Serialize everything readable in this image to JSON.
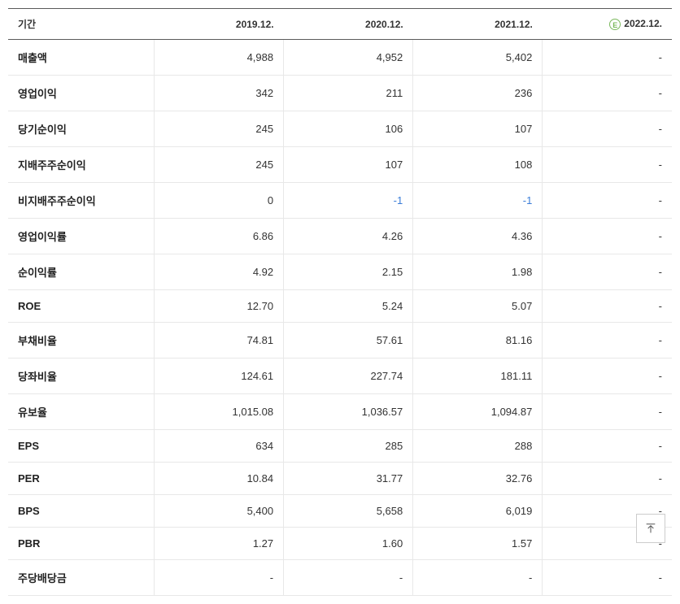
{
  "table": {
    "label_header": "기간",
    "columns": [
      "2019.12.",
      "2020.12.",
      "2021.12.",
      "2022.12."
    ],
    "estimate_col_index": 3,
    "estimate_badge": "E",
    "col_widths": [
      "22%",
      "19.5%",
      "19.5%",
      "19.5%",
      "19.5%"
    ],
    "rows": [
      {
        "label": "매출액",
        "values": [
          "4,988",
          "4,952",
          "5,402",
          "-"
        ],
        "neg": [
          false,
          false,
          false,
          false
        ]
      },
      {
        "label": "영업이익",
        "values": [
          "342",
          "211",
          "236",
          "-"
        ],
        "neg": [
          false,
          false,
          false,
          false
        ]
      },
      {
        "label": "당기순이익",
        "values": [
          "245",
          "106",
          "107",
          "-"
        ],
        "neg": [
          false,
          false,
          false,
          false
        ]
      },
      {
        "label": "지배주주순이익",
        "values": [
          "245",
          "107",
          "108",
          "-"
        ],
        "neg": [
          false,
          false,
          false,
          false
        ]
      },
      {
        "label": "비지배주주순이익",
        "values": [
          "0",
          "-1",
          "-1",
          "-"
        ],
        "neg": [
          false,
          true,
          true,
          false
        ]
      },
      {
        "label": "영업이익률",
        "values": [
          "6.86",
          "4.26",
          "4.36",
          "-"
        ],
        "neg": [
          false,
          false,
          false,
          false
        ]
      },
      {
        "label": "순이익률",
        "values": [
          "4.92",
          "2.15",
          "1.98",
          "-"
        ],
        "neg": [
          false,
          false,
          false,
          false
        ]
      },
      {
        "label": "ROE",
        "values": [
          "12.70",
          "5.24",
          "5.07",
          "-"
        ],
        "neg": [
          false,
          false,
          false,
          false
        ]
      },
      {
        "label": "부채비율",
        "values": [
          "74.81",
          "57.61",
          "81.16",
          "-"
        ],
        "neg": [
          false,
          false,
          false,
          false
        ]
      },
      {
        "label": "당좌비율",
        "values": [
          "124.61",
          "227.74",
          "181.11",
          "-"
        ],
        "neg": [
          false,
          false,
          false,
          false
        ]
      },
      {
        "label": "유보율",
        "values": [
          "1,015.08",
          "1,036.57",
          "1,094.87",
          "-"
        ],
        "neg": [
          false,
          false,
          false,
          false
        ]
      },
      {
        "label": "EPS",
        "values": [
          "634",
          "285",
          "288",
          "-"
        ],
        "neg": [
          false,
          false,
          false,
          false
        ]
      },
      {
        "label": "PER",
        "values": [
          "10.84",
          "31.77",
          "32.76",
          "-"
        ],
        "neg": [
          false,
          false,
          false,
          false
        ]
      },
      {
        "label": "BPS",
        "values": [
          "5,400",
          "5,658",
          "6,019",
          "-"
        ],
        "neg": [
          false,
          false,
          false,
          false
        ]
      },
      {
        "label": "PBR",
        "values": [
          "1.27",
          "1.60",
          "1.57",
          "-"
        ],
        "neg": [
          false,
          false,
          false,
          false
        ]
      },
      {
        "label": "주당배당금",
        "values": [
          "-",
          "-",
          "-",
          "-"
        ],
        "neg": [
          false,
          false,
          false,
          false
        ]
      }
    ]
  },
  "colors": {
    "border_strong": "#5a5a5a",
    "border_light": "#e8e8e8",
    "text": "#333333",
    "neg": "#3b7dd8",
    "estimate": "#7ab85c",
    "background": "#ffffff"
  }
}
